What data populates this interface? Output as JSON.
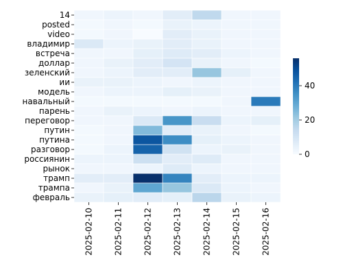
{
  "chart_data": {
    "type": "heatmap",
    "title": "",
    "xlabel": "",
    "ylabel": "",
    "x": [
      "2025-02-10",
      "2025-02-11",
      "2025-02-12",
      "2025-02-13",
      "2025-02-14",
      "2025-02-15",
      "2025-02-16"
    ],
    "y": [
      "14",
      "posted",
      "video",
      "владимир",
      "встреча",
      "доллар",
      "зеленский",
      "ии",
      "модель",
      "навальный",
      "парень",
      "переговор",
      "путин",
      "путина",
      "разговор",
      "россиянин",
      "рынок",
      "трамп",
      "трампа",
      "февраль"
    ],
    "values": [
      [
        2,
        3,
        2,
        6,
        15,
        2,
        2
      ],
      [
        1,
        2,
        1,
        4,
        3,
        2,
        2
      ],
      [
        1,
        2,
        0,
        6,
        4,
        2,
        2
      ],
      [
        8,
        3,
        4,
        6,
        4,
        2,
        2
      ],
      [
        2,
        2,
        5,
        7,
        6,
        3,
        2
      ],
      [
        2,
        4,
        6,
        10,
        4,
        2,
        1
      ],
      [
        2,
        3,
        6,
        6,
        22,
        5,
        2
      ],
      [
        4,
        4,
        3,
        2,
        3,
        2,
        2
      ],
      [
        2,
        3,
        3,
        5,
        4,
        2,
        2
      ],
      [
        1,
        1,
        1,
        1,
        1,
        2,
        40
      ],
      [
        2,
        4,
        3,
        2,
        3,
        2,
        2
      ],
      [
        2,
        2,
        8,
        34,
        13,
        3,
        5
      ],
      [
        1,
        2,
        25,
        6,
        4,
        2,
        1
      ],
      [
        1,
        2,
        48,
        36,
        5,
        3,
        2
      ],
      [
        1,
        3,
        45,
        11,
        3,
        4,
        2
      ],
      [
        3,
        3,
        12,
        6,
        7,
        2,
        2
      ],
      [
        2,
        2,
        3,
        7,
        3,
        2,
        2
      ],
      [
        6,
        6,
        56,
        38,
        6,
        3,
        3
      ],
      [
        2,
        4,
        30,
        22,
        8,
        3,
        2
      ],
      [
        4,
        5,
        6,
        5,
        16,
        4,
        3
      ]
    ],
    "colorbar": {
      "colormap": "Blues",
      "min": 0,
      "max": 56,
      "ticks": [
        0,
        20,
        40
      ],
      "tick_labels": [
        "0",
        "20",
        "40"
      ]
    },
    "grid": false,
    "legend": "colorbar-right"
  }
}
